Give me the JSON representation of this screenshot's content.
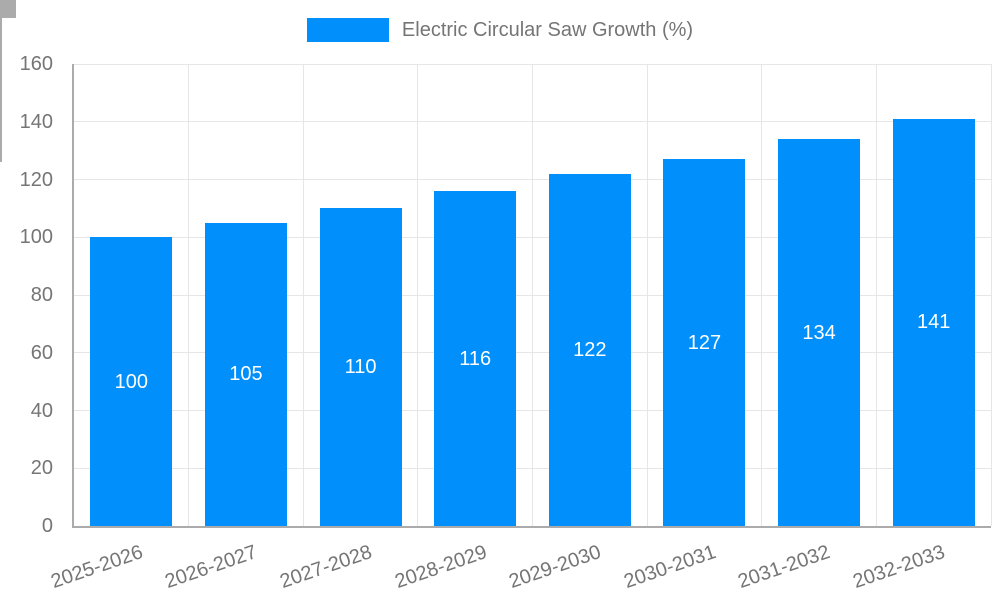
{
  "colors": {
    "bar": "#008ffb",
    "grid": "#e6e6e6",
    "axis": "#ababab",
    "text": "#757575",
    "bar_label": "#ffffff",
    "background": "#ffffff"
  },
  "legend": {
    "position": "top-center",
    "items": [
      {
        "label": "Electric Circular Saw Growth (%)",
        "color": "#008ffb"
      }
    ]
  },
  "chart_data": {
    "type": "bar",
    "title": "Electric Circular Saw Growth (%)",
    "categories": [
      "2025-2026",
      "2026-2027",
      "2027-2028",
      "2028-2029",
      "2029-2030",
      "2030-2031",
      "2031-2032",
      "2032-2033"
    ],
    "values": [
      100,
      105,
      110,
      116,
      122,
      127,
      134,
      141
    ],
    "series": [
      {
        "name": "Electric Circular Saw Growth (%)",
        "values": [
          100,
          105,
          110,
          116,
          122,
          127,
          134,
          141
        ]
      }
    ],
    "bar_value_labels": [
      "100",
      "105",
      "110",
      "116",
      "122",
      "127",
      "134",
      "141"
    ],
    "xlabel": "",
    "ylabel": "",
    "ylim": [
      0,
      160
    ],
    "ytick_step": 20,
    "ytick_labels": [
      "0",
      "20",
      "40",
      "60",
      "80",
      "100",
      "120",
      "140",
      "160"
    ],
    "grid": true,
    "legend_position": "top-center",
    "bar_label_position": "inside-center",
    "x_tick_label_rotation_deg": -19
  }
}
